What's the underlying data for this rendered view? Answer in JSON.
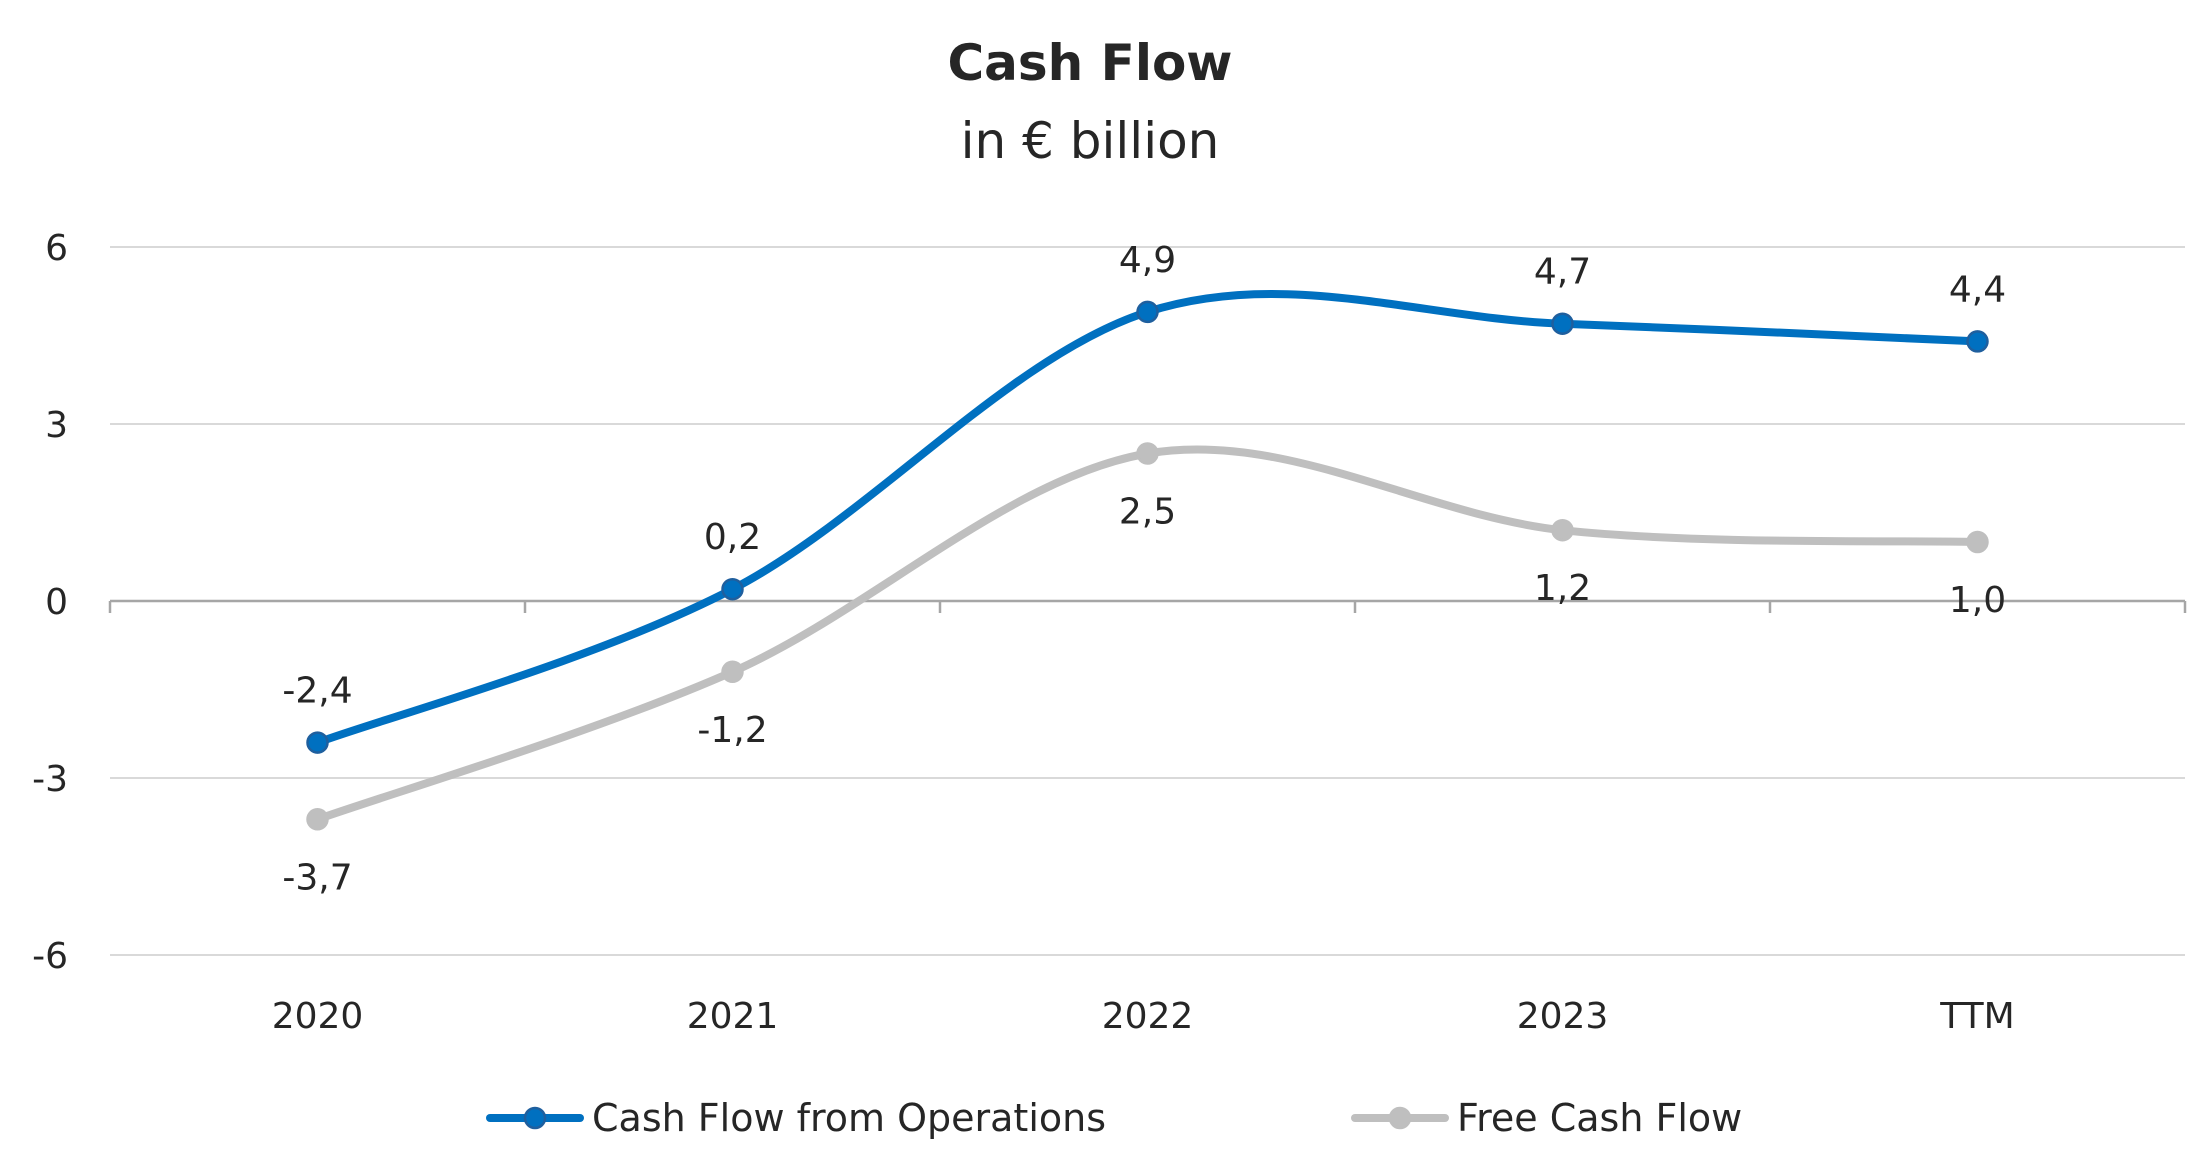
{
  "chart_data": {
    "type": "line",
    "title": "Cash Flow",
    "subtitle": "in € billion",
    "categories": [
      "2020",
      "2021",
      "2022",
      "2023",
      "TTM"
    ],
    "ylim": [
      -6,
      6
    ],
    "yticks": [
      6,
      3,
      0,
      -3,
      -6
    ],
    "ytick_labels": [
      "6",
      "3",
      "0",
      "-3",
      "-6"
    ],
    "grid": true,
    "legend_position": "bottom",
    "series": [
      {
        "name": "Cash Flow from Operations",
        "color": "#0070c0",
        "values": [
          -2.4,
          0.2,
          4.9,
          4.7,
          4.4
        ],
        "labels": [
          "-2,4",
          "0,2",
          "4,9",
          "4,7",
          "4,4"
        ],
        "label_position": "above"
      },
      {
        "name": "Free Cash Flow",
        "color": "#bfbfbf",
        "values": [
          -3.7,
          -1.2,
          2.5,
          1.2,
          1.0
        ],
        "labels": [
          "-3,7",
          "-1,2",
          "2,5",
          "1,2",
          "1,0"
        ],
        "label_position": "below"
      }
    ]
  }
}
